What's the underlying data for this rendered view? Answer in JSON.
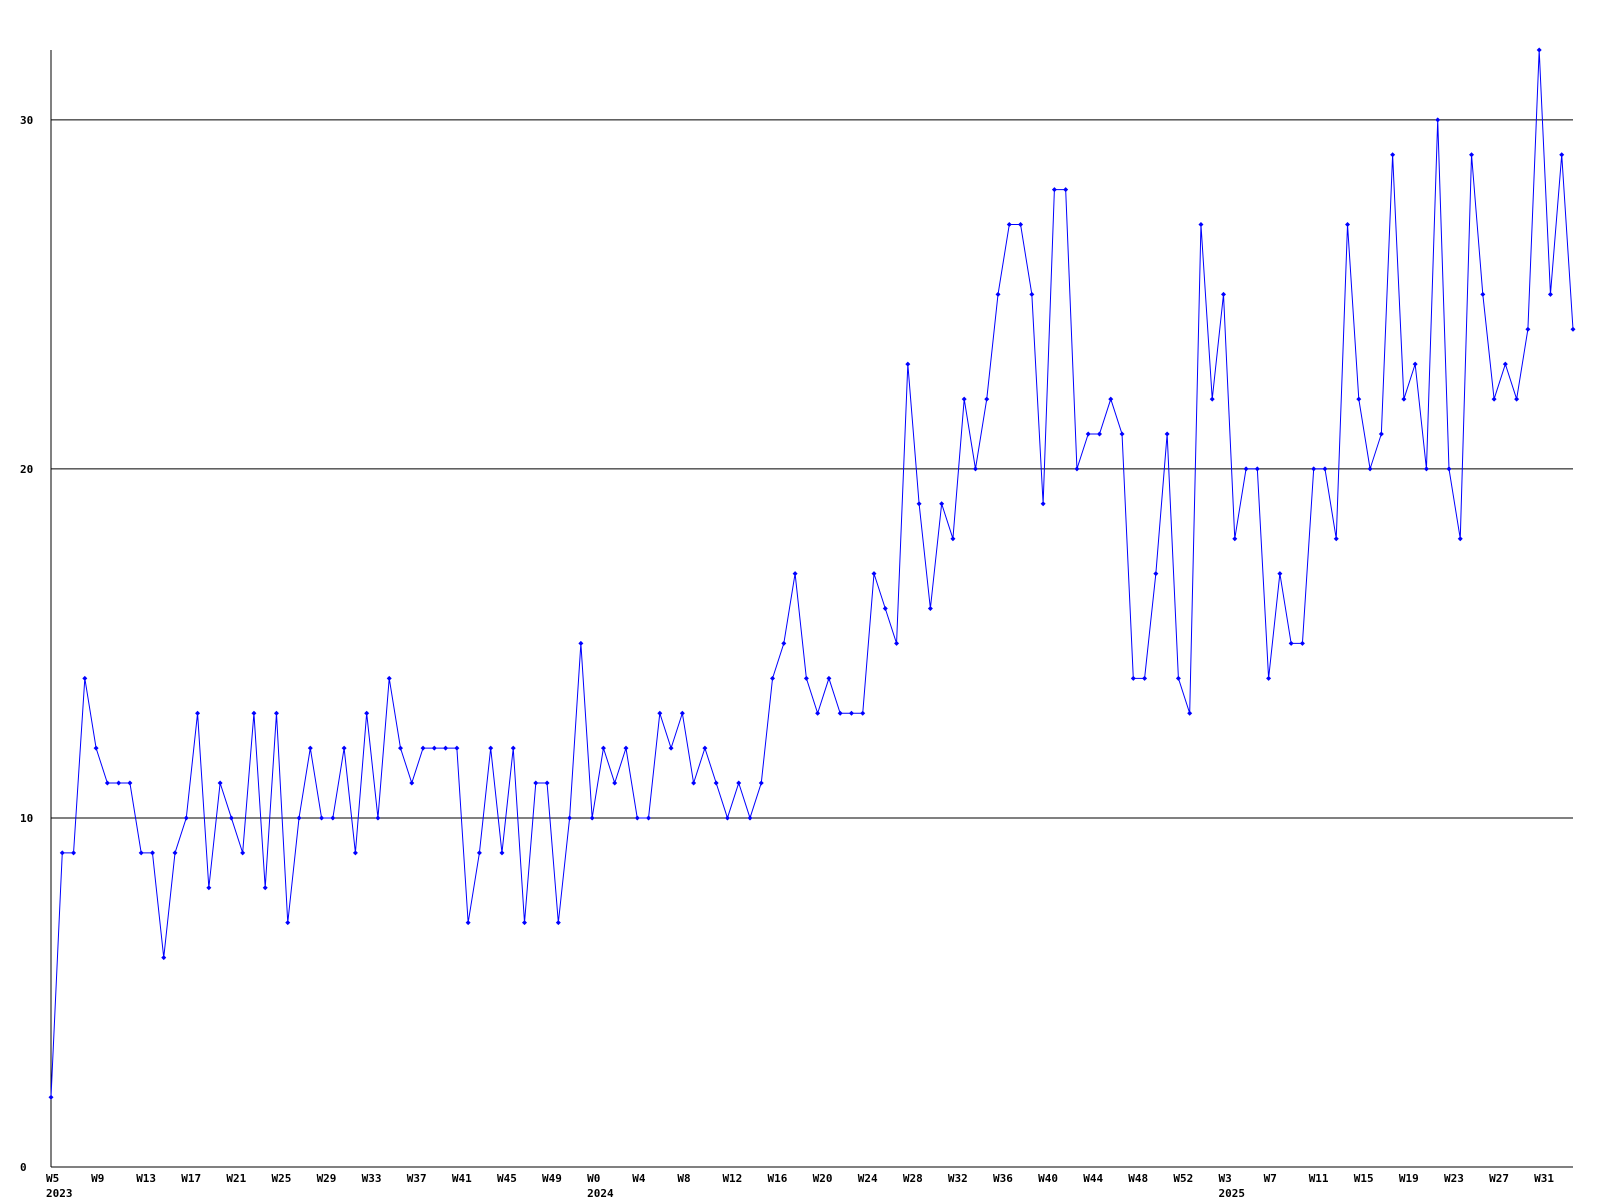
{
  "chart_data": {
    "type": "line",
    "color": "#0000ff",
    "grid": true,
    "ylim": [
      0,
      32
    ],
    "yticks": [
      0,
      10,
      20,
      30
    ],
    "categories": [
      "W5",
      null,
      null,
      null,
      "W9",
      null,
      null,
      null,
      "W13",
      null,
      null,
      null,
      "W17",
      null,
      null,
      null,
      "W21",
      null,
      null,
      null,
      "W25",
      null,
      null,
      null,
      "W29",
      null,
      null,
      null,
      "W33",
      null,
      null,
      null,
      "W37",
      null,
      null,
      null,
      "W41",
      null,
      null,
      null,
      "W45",
      null,
      null,
      null,
      "W49",
      null,
      null,
      null,
      "W0",
      null,
      null,
      null,
      "W4",
      null,
      null,
      null,
      "W8",
      null,
      null,
      null,
      "W12",
      null,
      null,
      null,
      "W16",
      null,
      null,
      null,
      "W20",
      null,
      null,
      null,
      "W24",
      null,
      null,
      null,
      "W28",
      null,
      null,
      null,
      "W32",
      null,
      null,
      null,
      "W36",
      null,
      null,
      null,
      "W40",
      null,
      null,
      null,
      "W44",
      null,
      null,
      null,
      "W48",
      null,
      null,
      null,
      "W52",
      null,
      null,
      null,
      "W3",
      null,
      null,
      null,
      "W7",
      null,
      null,
      null,
      "W11",
      null,
      null,
      null,
      "W15",
      null,
      null,
      null,
      "W19",
      null,
      null,
      null,
      "W23",
      null,
      null,
      null,
      "W27",
      null,
      null,
      null,
      "W31",
      null,
      null,
      null
    ],
    "category_years": [
      "2023",
      null,
      null,
      null,
      null,
      null,
      null,
      null,
      null,
      null,
      null,
      null,
      null,
      null,
      null,
      null,
      null,
      null,
      null,
      null,
      null,
      null,
      null,
      null,
      null,
      null,
      null,
      null,
      null,
      null,
      null,
      null,
      null,
      null,
      null,
      null,
      null,
      null,
      null,
      null,
      null,
      null,
      null,
      null,
      null,
      null,
      null,
      null,
      "2024",
      null,
      null,
      null,
      null,
      null,
      null,
      null,
      null,
      null,
      null,
      null,
      null,
      null,
      null,
      null,
      null,
      null,
      null,
      null,
      null,
      null,
      null,
      null,
      null,
      null,
      null,
      null,
      null,
      null,
      null,
      null,
      null,
      null,
      null,
      null,
      null,
      null,
      null,
      null,
      null,
      null,
      null,
      null,
      null,
      null,
      null,
      null,
      null,
      null,
      null,
      null,
      null,
      null,
      null,
      null,
      "2025",
      null,
      null,
      null,
      null,
      null,
      null,
      null,
      null,
      null,
      null,
      null,
      null,
      null,
      null,
      null,
      null,
      null,
      null,
      null,
      null,
      null,
      null,
      null,
      null,
      null,
      null,
      null,
      null,
      null,
      null,
      null
    ],
    "values": [
      2,
      9,
      9,
      14,
      12,
      11,
      11,
      11,
      9,
      9,
      6,
      9,
      10,
      13,
      8,
      11,
      10,
      9,
      13,
      8,
      13,
      7,
      10,
      12,
      10,
      10,
      12,
      9,
      13,
      10,
      14,
      12,
      11,
      12,
      12,
      12,
      12,
      7,
      9,
      12,
      9,
      12,
      7,
      11,
      11,
      7,
      10,
      15,
      10,
      12,
      11,
      12,
      10,
      10,
      13,
      12,
      13,
      11,
      12,
      11,
      10,
      11,
      10,
      11,
      14,
      15,
      17,
      14,
      13,
      14,
      13,
      13,
      13,
      17,
      16,
      15,
      23,
      19,
      16,
      19,
      18,
      22,
      20,
      22,
      25,
      27,
      27,
      25,
      19,
      28,
      28,
      20,
      21,
      21,
      22,
      21,
      14,
      14,
      17,
      21,
      14,
      13,
      27,
      22,
      25,
      18,
      20,
      20,
      14,
      17,
      15,
      15,
      20,
      20,
      18,
      27,
      22,
      20,
      21,
      29,
      22,
      23,
      20,
      30,
      20,
      18,
      29,
      25,
      22,
      23,
      22,
      24,
      32,
      25,
      29,
      24
    ]
  }
}
